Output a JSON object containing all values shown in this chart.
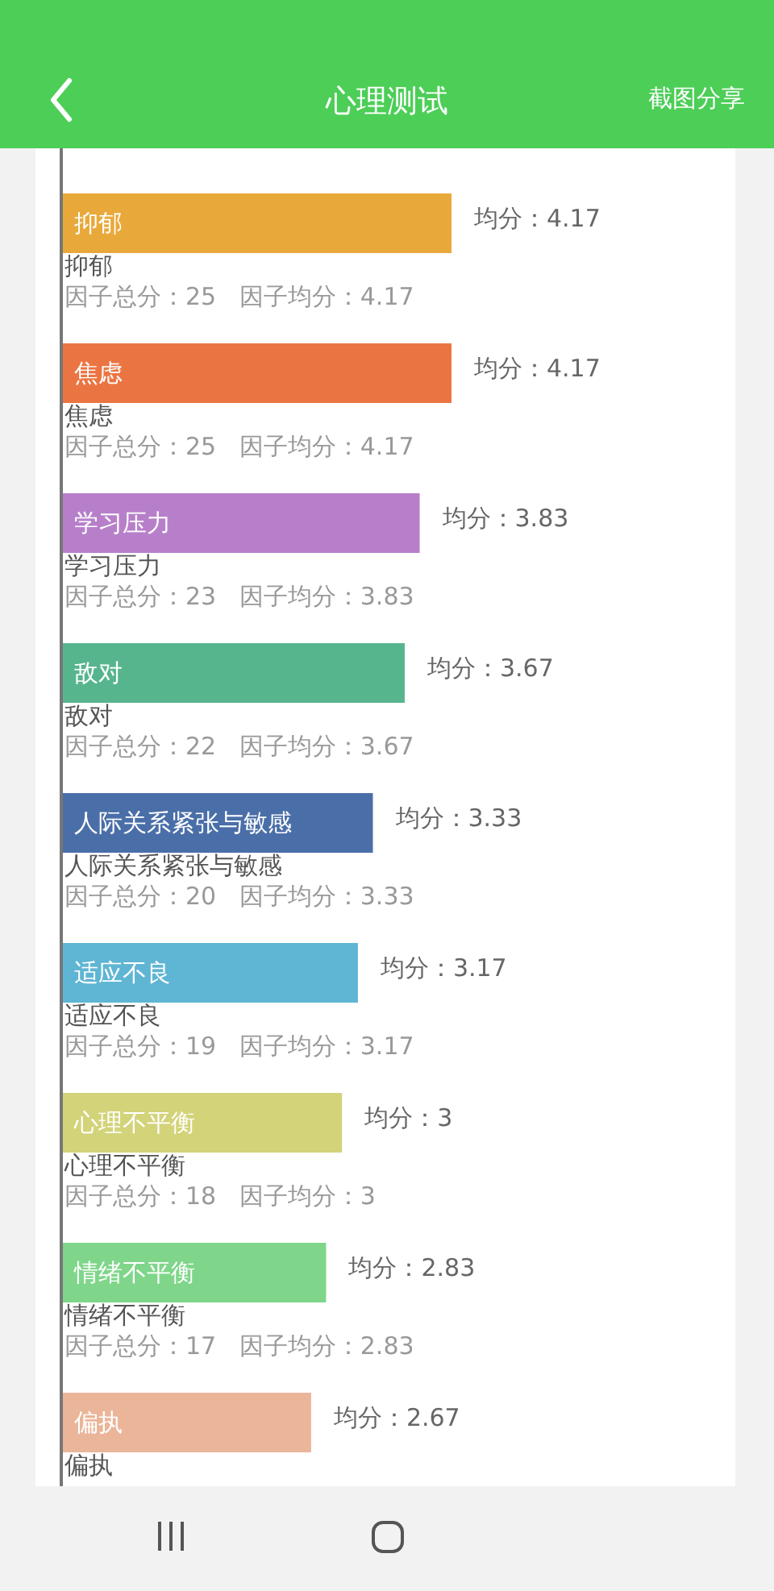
{
  "chart_data": {
    "type": "bar",
    "orientation": "horizontal",
    "title": "心理测试",
    "categories": [
      "抑郁",
      "焦虑",
      "学习压力",
      "敌对",
      "人际关系紧张与敏感",
      "适应不良",
      "心理不平衡",
      "情绪不平衡",
      "偏执"
    ],
    "values": [
      4.17,
      4.17,
      3.83,
      3.67,
      3.33,
      3.17,
      3,
      2.83,
      2.67
    ],
    "value_labels": [
      "均分：4.17",
      "均分：4.17",
      "均分：3.83",
      "均分：3.67",
      "均分：3.33",
      "均分：3.17",
      "均分：3",
      "均分：2.83",
      "均分：2.67"
    ],
    "colors": [
      "#e9a93a",
      "#eb7542",
      "#b77fc9",
      "#57b58e",
      "#4a6fa8",
      "#5fb5d4",
      "#d3d37a",
      "#7fd68a",
      "#ebb59a"
    ],
    "annotations": [
      "截图分享",
      "抑郁",
      "因子总分：25   因子均分：4.17",
      "焦虑",
      "因子总分：25   因子均分：4.17",
      "学习压力",
      "因子总分：23   因子均分：3.83",
      "敌对",
      "因子总分：22   因子均分：3.67",
      "人际关系紧张与敏感",
      "因子总分：20   因子均分：3.33",
      "适应不良",
      "因子总分：19   因子均分：3.17",
      "心理不平衡",
      "因子总分：18   因子均分：3",
      "情绪不平衡",
      "因子总分：17   因子均分：2.83",
      "偏执"
    ]
  }
}
